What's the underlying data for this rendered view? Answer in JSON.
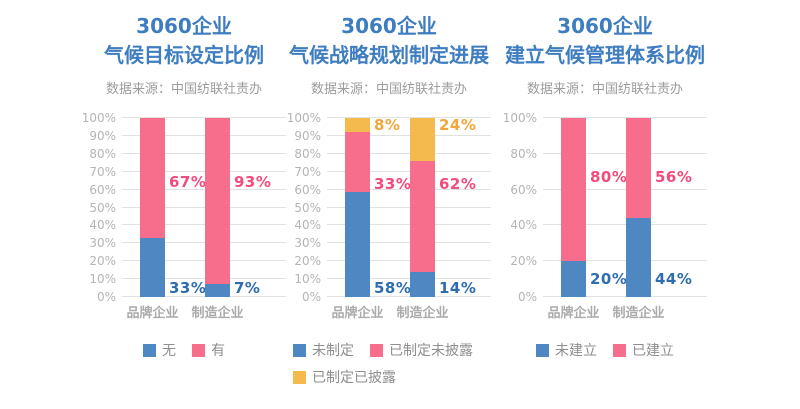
{
  "page": {
    "background": "#FFFFFF"
  },
  "colors": {
    "title_blue": "#3E7DC0",
    "bar_blue": "#4E87C2",
    "bar_pink": "#F66E8C",
    "bar_yellow": "#F4BA4D",
    "label_blue": "#2E6DAE",
    "label_pink": "#F24B7C",
    "label_yellow": "#EFA83C",
    "gridline": "#E2E2E2"
  },
  "chart_data": [
    {
      "type": "bar",
      "stacked": true,
      "title_line1": "3060企业",
      "title_line2": "气候目标设定比例",
      "subtitle": "数据来源：中国纺联社责办",
      "categories": [
        "品牌企业",
        "制造企业"
      ],
      "ylim": [
        0,
        100
      ],
      "y_tick_step": 10,
      "y_ticks": [
        "0%",
        "10%",
        "20%",
        "30%",
        "40%",
        "50%",
        "60%",
        "70%",
        "80%",
        "90%",
        "100%"
      ],
      "grid": true,
      "legend_position": "bottom",
      "series": [
        {
          "name": "无",
          "values": [
            33,
            7
          ],
          "color": "#4E87C2",
          "label_color": "#2E6DAE",
          "label_y_pct": 5
        },
        {
          "name": "有",
          "values": [
            67,
            93
          ],
          "color": "#F66E8C",
          "label_color": "#F24B7C",
          "label_y_pct": 64
        }
      ]
    },
    {
      "type": "bar",
      "stacked": true,
      "title_line1": "3060企业",
      "title_line2": "气候战略规划制定进展",
      "subtitle": "数据来源：中国纺联社责办",
      "categories": [
        "品牌企业",
        "制造企业"
      ],
      "ylim": [
        0,
        100
      ],
      "y_tick_step": 10,
      "y_ticks": [
        "0%",
        "10%",
        "20%",
        "30%",
        "40%",
        "50%",
        "60%",
        "70%",
        "80%",
        "90%",
        "100%"
      ],
      "grid": true,
      "legend_position": "bottom",
      "series": [
        {
          "name": "未制定",
          "values": [
            58,
            14
          ],
          "color": "#4E87C2",
          "label_color": "#2E6DAE",
          "label_y_pct": 5
        },
        {
          "name": "已制定未披露",
          "values": [
            33,
            62
          ],
          "color": "#F66E8C",
          "label_color": "#F24B7C",
          "label_y_pct": 63
        },
        {
          "name": "已制定已披露",
          "values": [
            8,
            24
          ],
          "color": "#F4BA4D",
          "label_color": "#EFA83C",
          "label_y_pct": 96
        }
      ]
    },
    {
      "type": "bar",
      "stacked": true,
      "title_line1": "3060企业",
      "title_line2": "建立气候管理体系比例",
      "subtitle": "数据来源：中国纺联社责办",
      "categories": [
        "品牌企业",
        "制造企业"
      ],
      "ylim": [
        0,
        100
      ],
      "y_tick_step": 20,
      "y_ticks": [
        "0%",
        "20%",
        "40%",
        "60%",
        "80%",
        "100%"
      ],
      "grid": true,
      "legend_position": "bottom",
      "series": [
        {
          "name": "未建立",
          "values": [
            20,
            44
          ],
          "color": "#4E87C2",
          "label_color": "#2E6DAE",
          "label_y_pct": 10
        },
        {
          "name": "已建立",
          "values": [
            80,
            56
          ],
          "color": "#F66E8C",
          "label_color": "#F24B7C",
          "label_y_pct": 67
        }
      ]
    }
  ]
}
